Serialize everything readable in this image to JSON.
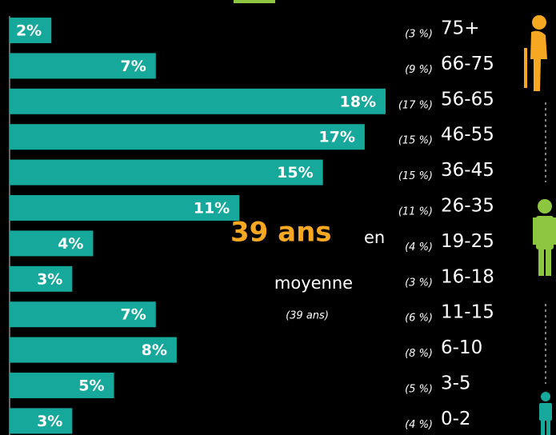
{
  "chart_data": {
    "type": "bar",
    "orientation": "horizontal",
    "categories": [
      "75+",
      "66-75",
      "56-65",
      "46-55",
      "36-45",
      "26-35",
      "19-25",
      "16-18",
      "11-15",
      "6-10",
      "3-5",
      "0-2"
    ],
    "values": [
      2,
      7,
      18,
      17,
      15,
      11,
      4,
      3,
      7,
      8,
      5,
      3
    ],
    "value_labels": [
      "2%",
      "7%",
      "18%",
      "17%",
      "15%",
      "11%",
      "4%",
      "3%",
      "7%",
      "8%",
      "5%",
      "3%"
    ],
    "comparison_labels": [
      "(3 %)",
      "(9 %)",
      "(17 %)",
      "(15 %)",
      "(15 %)",
      "(11 %)",
      "(4 %)",
      "(3 %)",
      "(6 %)",
      "(8 %)",
      "(5 %)",
      "(4 %)"
    ],
    "color": "#17a89c",
    "xlim": [
      0,
      18
    ],
    "annotations": {
      "average": "39 ans",
      "en": "en",
      "moyenne": "moyenne",
      "comparison": "(39 ans)"
    }
  }
}
